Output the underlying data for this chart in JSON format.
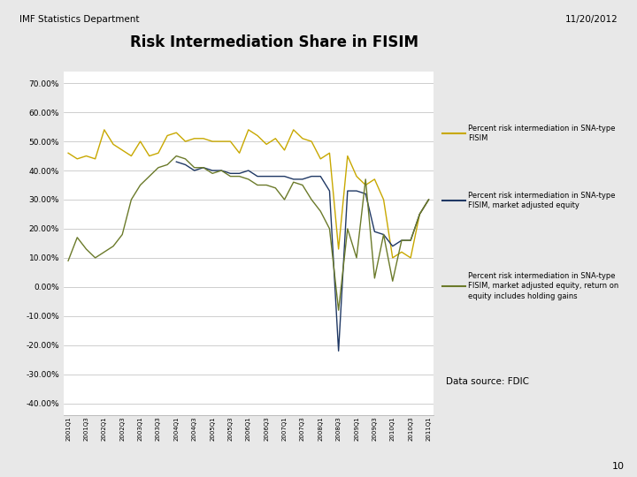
{
  "title": "Risk Intermediation Share in FISIM",
  "header_left": "IMF Statistics Department",
  "header_right": "11/20/2012",
  "footer": "Data source: FDIC",
  "page_number": "10",
  "yticks": [
    -0.4,
    -0.3,
    -0.2,
    -0.1,
    0.0,
    0.1,
    0.2,
    0.3,
    0.4,
    0.5,
    0.6,
    0.7
  ],
  "legend": [
    "Percent risk intermediation in SNA-type\nFISIM",
    "Percent risk intermediation in SNA-type\nFISIM, market adjusted equity",
    "Percent risk intermediation in SNA-type\nFISIM, market adjusted equity, return on\nequity includes holding gains"
  ],
  "line_colors": [
    "#C8A800",
    "#1F3864",
    "#6B7A2A"
  ],
  "series1": [
    0.46,
    0.44,
    0.45,
    0.44,
    0.54,
    0.49,
    0.47,
    0.45,
    0.5,
    0.45,
    0.46,
    0.52,
    0.53,
    0.5,
    0.51,
    0.51,
    0.5,
    0.5,
    0.5,
    0.46,
    0.54,
    0.52,
    0.49,
    0.51,
    0.47,
    0.54,
    0.51,
    0.5,
    0.44,
    0.46,
    0.13,
    0.45,
    0.38,
    0.35,
    0.37,
    0.3,
    0.1,
    0.12,
    0.1,
    0.25,
    0.3
  ],
  "series2": [
    null,
    null,
    null,
    null,
    null,
    null,
    null,
    null,
    null,
    null,
    null,
    null,
    0.43,
    0.42,
    0.4,
    0.41,
    0.4,
    0.4,
    0.39,
    0.39,
    0.4,
    0.38,
    0.38,
    0.38,
    0.38,
    0.37,
    0.37,
    0.38,
    0.38,
    0.33,
    -0.22,
    0.33,
    0.33,
    0.32,
    0.19,
    0.18,
    0.14,
    0.16,
    0.16,
    0.25,
    0.3
  ],
  "series3": [
    0.09,
    0.17,
    0.13,
    0.1,
    0.12,
    0.14,
    0.18,
    0.3,
    0.35,
    0.38,
    0.41,
    0.42,
    0.45,
    0.44,
    0.41,
    0.41,
    0.39,
    0.4,
    0.38,
    0.38,
    0.37,
    0.35,
    0.35,
    0.34,
    0.3,
    0.36,
    0.35,
    0.3,
    0.26,
    0.2,
    -0.08,
    0.2,
    0.1,
    0.37,
    0.03,
    0.18,
    0.02,
    0.16,
    0.16,
    0.25,
    0.3
  ]
}
